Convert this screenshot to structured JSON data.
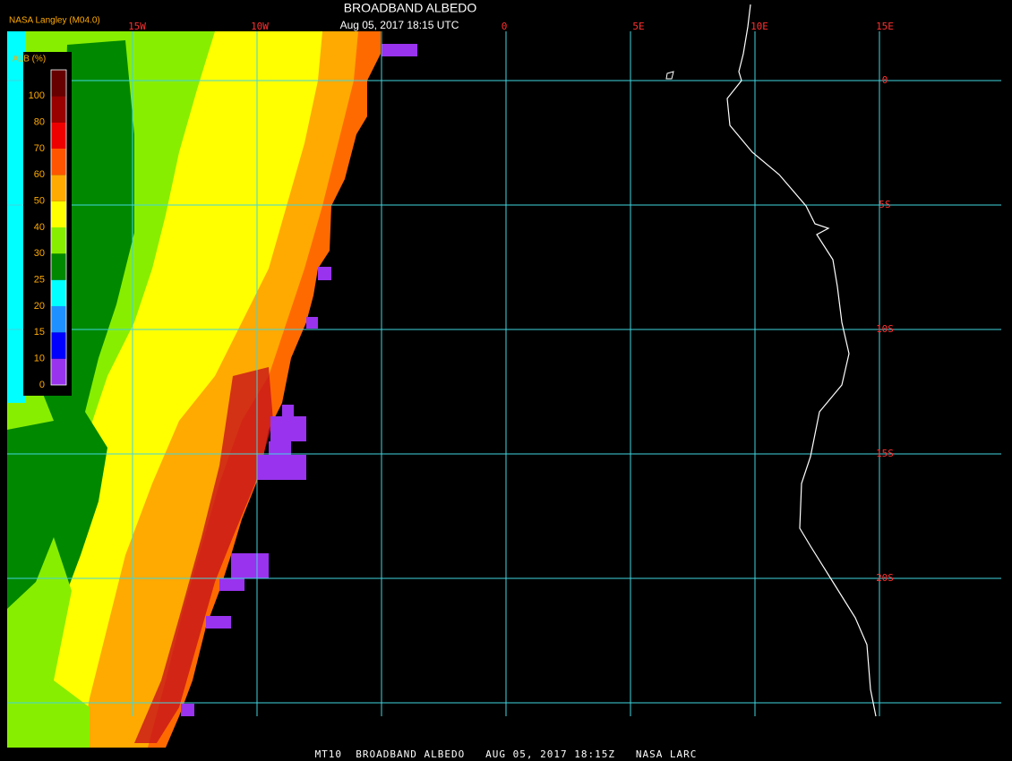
{
  "header": {
    "title": "BROADBAND ALBEDO",
    "subtitle": "Aug 05, 2017 18:15 UTC",
    "producer": "NASA Langley (M04.0)"
  },
  "legend": {
    "title": "ALB (%)",
    "labels": [
      "0",
      "10",
      "15",
      "20",
      "25",
      "30",
      "40",
      "50",
      "60",
      "70",
      "80",
      "100"
    ],
    "colors": [
      "#9933ee",
      "#0000ff",
      "#1e90ff",
      "#00ffff",
      "#008800",
      "#88ee00",
      "#ffff00",
      "#ffaa00",
      "#ff5500",
      "#ee0000",
      "#990000",
      "#660000"
    ]
  },
  "grid": {
    "longitudes": [
      "15W",
      "10W",
      "0",
      "5E",
      "10E",
      "15E"
    ],
    "latitudes": [
      "0",
      "5S",
      "10S",
      "15S",
      "20S"
    ]
  },
  "footer": "MT10  BROADBAND ALBEDO   AUG 05, 2017 18:15Z   NASA LARC"
}
